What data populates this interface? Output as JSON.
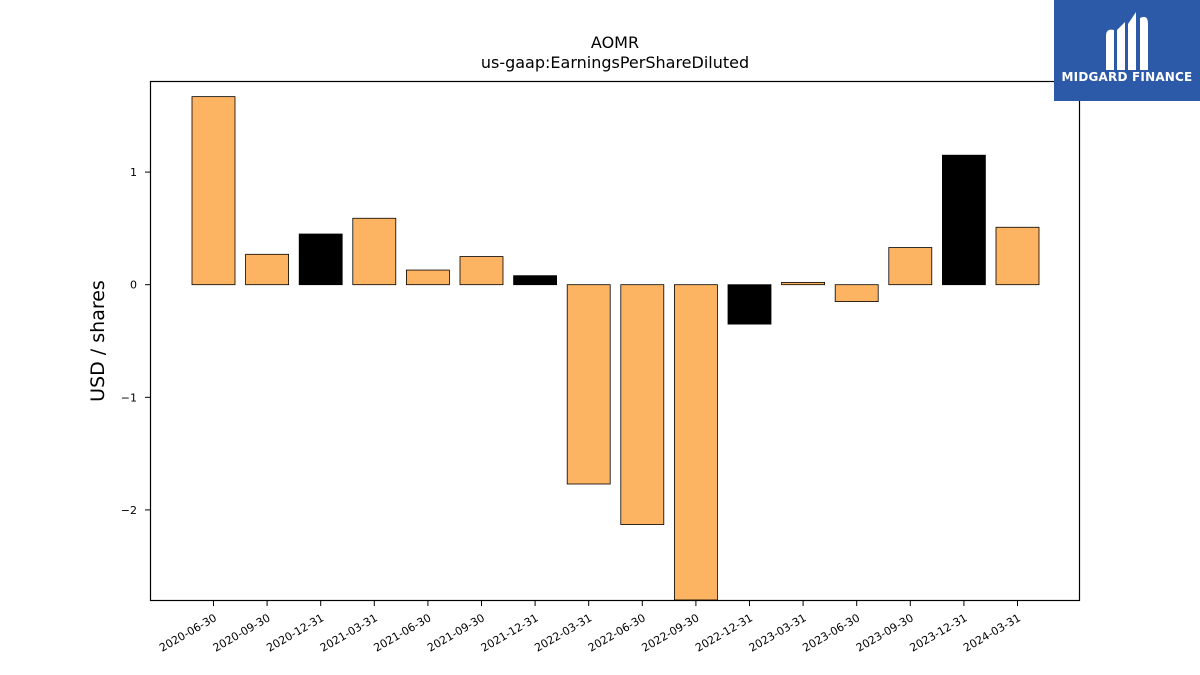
{
  "chart_data": {
    "type": "bar",
    "title": "AOMR",
    "subtitle": "us-gaap:EarningsPerShareDiluted",
    "xlabel": "",
    "ylabel": "USD / shares",
    "ylim": [
      -2.8,
      1.8
    ],
    "yticks": [
      1,
      0,
      -1,
      -2
    ],
    "ytick_labels": [
      "1",
      "0",
      "−1",
      "−2"
    ],
    "grid": false,
    "categories": [
      "2020-06-30",
      "2020-09-30",
      "2020-12-31",
      "2021-03-31",
      "2021-06-30",
      "2021-09-30",
      "2021-12-31",
      "2022-03-31",
      "2022-06-30",
      "2022-09-30",
      "2022-12-31",
      "2023-03-31",
      "2023-06-30",
      "2023-09-30",
      "2023-12-31",
      "2024-03-31"
    ],
    "values": [
      1.67,
      0.27,
      0.45,
      0.59,
      0.13,
      0.25,
      0.08,
      -1.77,
      -2.13,
      -2.8,
      -0.35,
      0.02,
      -0.15,
      0.33,
      1.15,
      0.51
    ],
    "bar_colors": [
      "#fdb462",
      "#fdb462",
      "#000000",
      "#fdb462",
      "#fdb462",
      "#fdb462",
      "#000000",
      "#fdb462",
      "#fdb462",
      "#fdb462",
      "#000000",
      "#fdb462",
      "#fdb462",
      "#fdb462",
      "#000000",
      "#fdb462"
    ]
  },
  "logo": {
    "text": "MIDGARD FINANCE",
    "icon": "midgard-m-logo-icon",
    "background": "#2c5aa8"
  }
}
